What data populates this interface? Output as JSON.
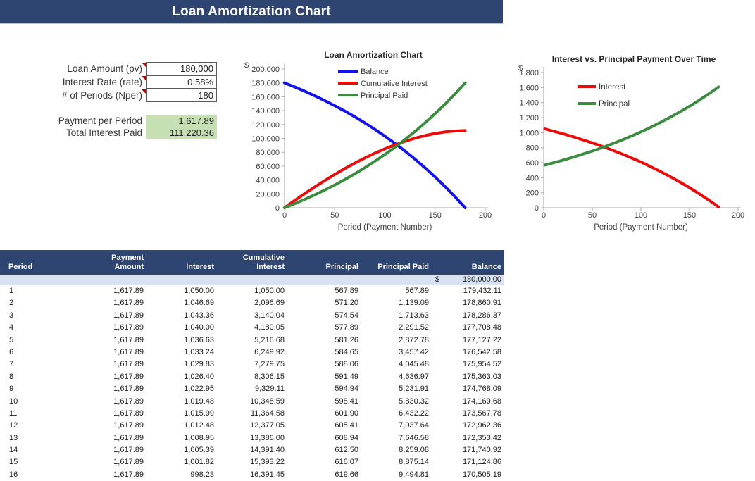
{
  "title_bar": {
    "title": "Loan Amortization Chart"
  },
  "inputs": {
    "fields": [
      {
        "label": "Loan Amount (pv)",
        "value": "180,000"
      },
      {
        "label": "Interest Rate (rate)",
        "value": "0.58%"
      },
      {
        "label": "# of Periods (Nper)",
        "value": "180"
      }
    ],
    "results": [
      {
        "label": "Payment per Period",
        "value": "1,617.89"
      },
      {
        "label": "Total Interest Paid",
        "value": "111,220.36"
      }
    ]
  },
  "chart_data": [
    {
      "type": "line",
      "title": "Loan Amortization Chart",
      "xlabel": "Period (Payment Number)",
      "ylabel": "$",
      "xlim": [
        0,
        200
      ],
      "ylim": [
        0,
        200000
      ],
      "x_ticks": [
        0,
        50,
        100,
        150,
        200
      ],
      "y_ticks": [
        0,
        20000,
        40000,
        60000,
        80000,
        100000,
        120000,
        140000,
        160000,
        180000,
        200000
      ],
      "grid": false,
      "legend_position": "top-center-inside",
      "x": [
        0,
        10,
        20,
        30,
        40,
        50,
        60,
        70,
        80,
        90,
        100,
        110,
        120,
        130,
        140,
        150,
        160,
        170,
        180
      ],
      "series": [
        {
          "name": "Balance",
          "color": "#1212ee",
          "values": [
            180000,
            174170,
            167991,
            161441,
            154497,
            147136,
            139342,
            131076,
            122315,
            113031,
            103188,
            92757,
            81703,
            69983,
            57563,
            44400,
            30447,
            15660,
            0
          ]
        },
        {
          "name": "Cumulative Interest",
          "color": "#ee0909",
          "values": [
            0,
            10349,
            20349,
            29978,
            39213,
            48031,
            56415,
            64328,
            71746,
            78641,
            84977,
            90725,
            95850,
            100309,
            104068,
            107084,
            109309,
            110701,
            111220
          ]
        },
        {
          "name": "Principal Paid",
          "color": "#3c8c40",
          "values": [
            0,
            5830,
            12009,
            18559,
            25503,
            32864,
            40658,
            48924,
            57685,
            66969,
            76812,
            87243,
            98297,
            110017,
            122437,
            135600,
            149553,
            164340,
            180000
          ]
        }
      ]
    },
    {
      "type": "line",
      "title": "Interest vs. Principal Payment Over Time",
      "xlabel": "Period (Payment Number)",
      "ylabel": "$",
      "xlim": [
        0,
        200
      ],
      "ylim": [
        0,
        1800
      ],
      "x_ticks": [
        0,
        50,
        100,
        150,
        200
      ],
      "y_ticks": [
        0,
        200,
        400,
        600,
        800,
        1000,
        1200,
        1400,
        1600,
        1800
      ],
      "grid": false,
      "legend_position": "upper-left-inside",
      "x": [
        1,
        10,
        20,
        30,
        40,
        50,
        60,
        70,
        80,
        90,
        100,
        110,
        120,
        130,
        140,
        150,
        160,
        170,
        180
      ],
      "series": [
        {
          "name": "Interest",
          "color": "#ee0909",
          "values": [
            1050,
            1019,
            984,
            946,
            905,
            863,
            818,
            770,
            719,
            665,
            608,
            547,
            483,
            415,
            343,
            267,
            186,
            100,
            9
          ]
        },
        {
          "name": "Principal",
          "color": "#3c8c40",
          "values": [
            568,
            598,
            634,
            672,
            713,
            755,
            800,
            848,
            899,
            953,
            1010,
            1071,
            1135,
            1203,
            1275,
            1351,
            1432,
            1518,
            1609
          ]
        }
      ]
    }
  ],
  "table": {
    "headers": [
      "Period",
      "Payment\nAmount",
      "Interest",
      "Cumulative\nInterest",
      "Principal",
      "Principal Paid",
      "Balance"
    ],
    "start_row": {
      "currency_symbol": "$",
      "balance": "180,000.00"
    },
    "rows": [
      [
        "1",
        "1,617.89",
        "1,050.00",
        "1,050.00",
        "567.89",
        "567.89",
        "179,432.11"
      ],
      [
        "2",
        "1,617.89",
        "1,046.69",
        "2,096.69",
        "571.20",
        "1,139.09",
        "178,860.91"
      ],
      [
        "3",
        "1,617.89",
        "1,043.36",
        "3,140.04",
        "574.54",
        "1,713.63",
        "178,286.37"
      ],
      [
        "4",
        "1,617.89",
        "1,040.00",
        "4,180.05",
        "577.89",
        "2,291.52",
        "177,708.48"
      ],
      [
        "5",
        "1,617.89",
        "1,036.63",
        "5,216.68",
        "581.26",
        "2,872.78",
        "177,127.22"
      ],
      [
        "6",
        "1,617.89",
        "1,033.24",
        "6,249.92",
        "584.65",
        "3,457.42",
        "176,542.58"
      ],
      [
        "7",
        "1,617.89",
        "1,029.83",
        "7,279.75",
        "588.06",
        "4,045.48",
        "175,954.52"
      ],
      [
        "8",
        "1,617.89",
        "1,026.40",
        "8,306.15",
        "591.49",
        "4,636.97",
        "175,363.03"
      ],
      [
        "9",
        "1,617.89",
        "1,022.95",
        "9,329.11",
        "594.94",
        "5,231.91",
        "174,768.09"
      ],
      [
        "10",
        "1,617.89",
        "1,019.48",
        "10,348.59",
        "598.41",
        "5,830.32",
        "174,169.68"
      ],
      [
        "11",
        "1,617.89",
        "1,015.99",
        "11,364.58",
        "601.90",
        "6,432.22",
        "173,567.78"
      ],
      [
        "12",
        "1,617.89",
        "1,012.48",
        "12,377.05",
        "605.41",
        "7,037.64",
        "172,962.36"
      ],
      [
        "13",
        "1,617.89",
        "1,008.95",
        "13,386.00",
        "608.94",
        "7,646.58",
        "172,353.42"
      ],
      [
        "14",
        "1,617.89",
        "1,005.39",
        "14,391.40",
        "612.50",
        "8,259.08",
        "171,740.92"
      ],
      [
        "15",
        "1,617.89",
        "1,001.82",
        "15,393.22",
        "616.07",
        "8,875.14",
        "171,124.86"
      ],
      [
        "16",
        "1,617.89",
        "998.23",
        "16,391.45",
        "619.66",
        "9,494.81",
        "170,505.19"
      ]
    ]
  },
  "colors": {
    "navy": "#2f4571",
    "light_blue_row": "#d9e1f2",
    "green_cell": "#c6e0b4",
    "note_red": "#c00000",
    "line_blue": "#1212ee",
    "line_red": "#ee0909",
    "line_green": "#3c8c40"
  }
}
